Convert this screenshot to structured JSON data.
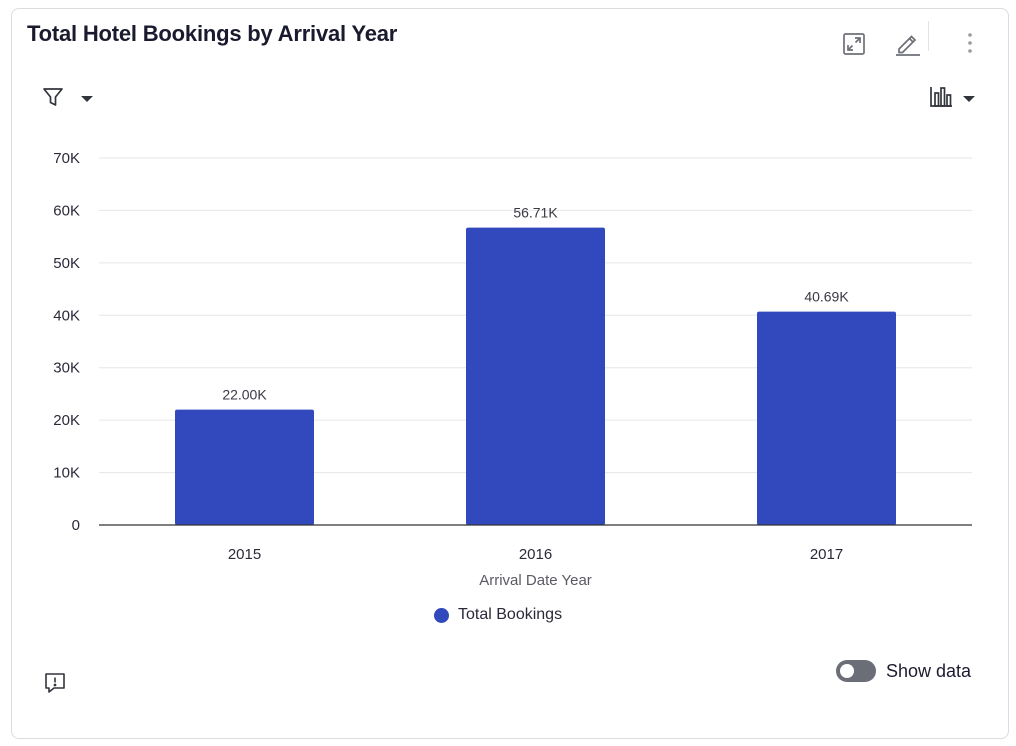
{
  "card": {
    "title": "Total Hotel Bookings by Arrival Year",
    "show_data_label": "Show data",
    "show_data_on": false
  },
  "icons": {
    "expand": "expand-icon",
    "edit": "pencil-icon",
    "more": "more-vertical-icon",
    "filter": "filter-icon",
    "chart_type": "bar-chart-icon",
    "feedback": "feedback-icon"
  },
  "colors": {
    "bar": "#3149bd",
    "grid": "#e6e6e6",
    "axis": "#333333",
    "toggle": "#6b6e76"
  },
  "chart_data": {
    "type": "bar",
    "title": "Total Hotel Bookings by Arrival Year",
    "categories": [
      "2015",
      "2016",
      "2017"
    ],
    "series": [
      {
        "name": "Total Bookings",
        "values": [
          22000,
          56710,
          40690
        ],
        "labels": [
          "22.00K",
          "56.71K",
          "40.69K"
        ]
      }
    ],
    "xlabel": "Arrival Date Year",
    "ylabel": "",
    "ylim": [
      0,
      70000
    ],
    "yticks": [
      0,
      10000,
      20000,
      30000,
      40000,
      50000,
      60000,
      70000
    ],
    "ytick_labels": [
      "0",
      "10K",
      "20K",
      "30K",
      "40K",
      "50K",
      "60K",
      "70K"
    ],
    "grid": true,
    "legend": "bottom-center"
  }
}
